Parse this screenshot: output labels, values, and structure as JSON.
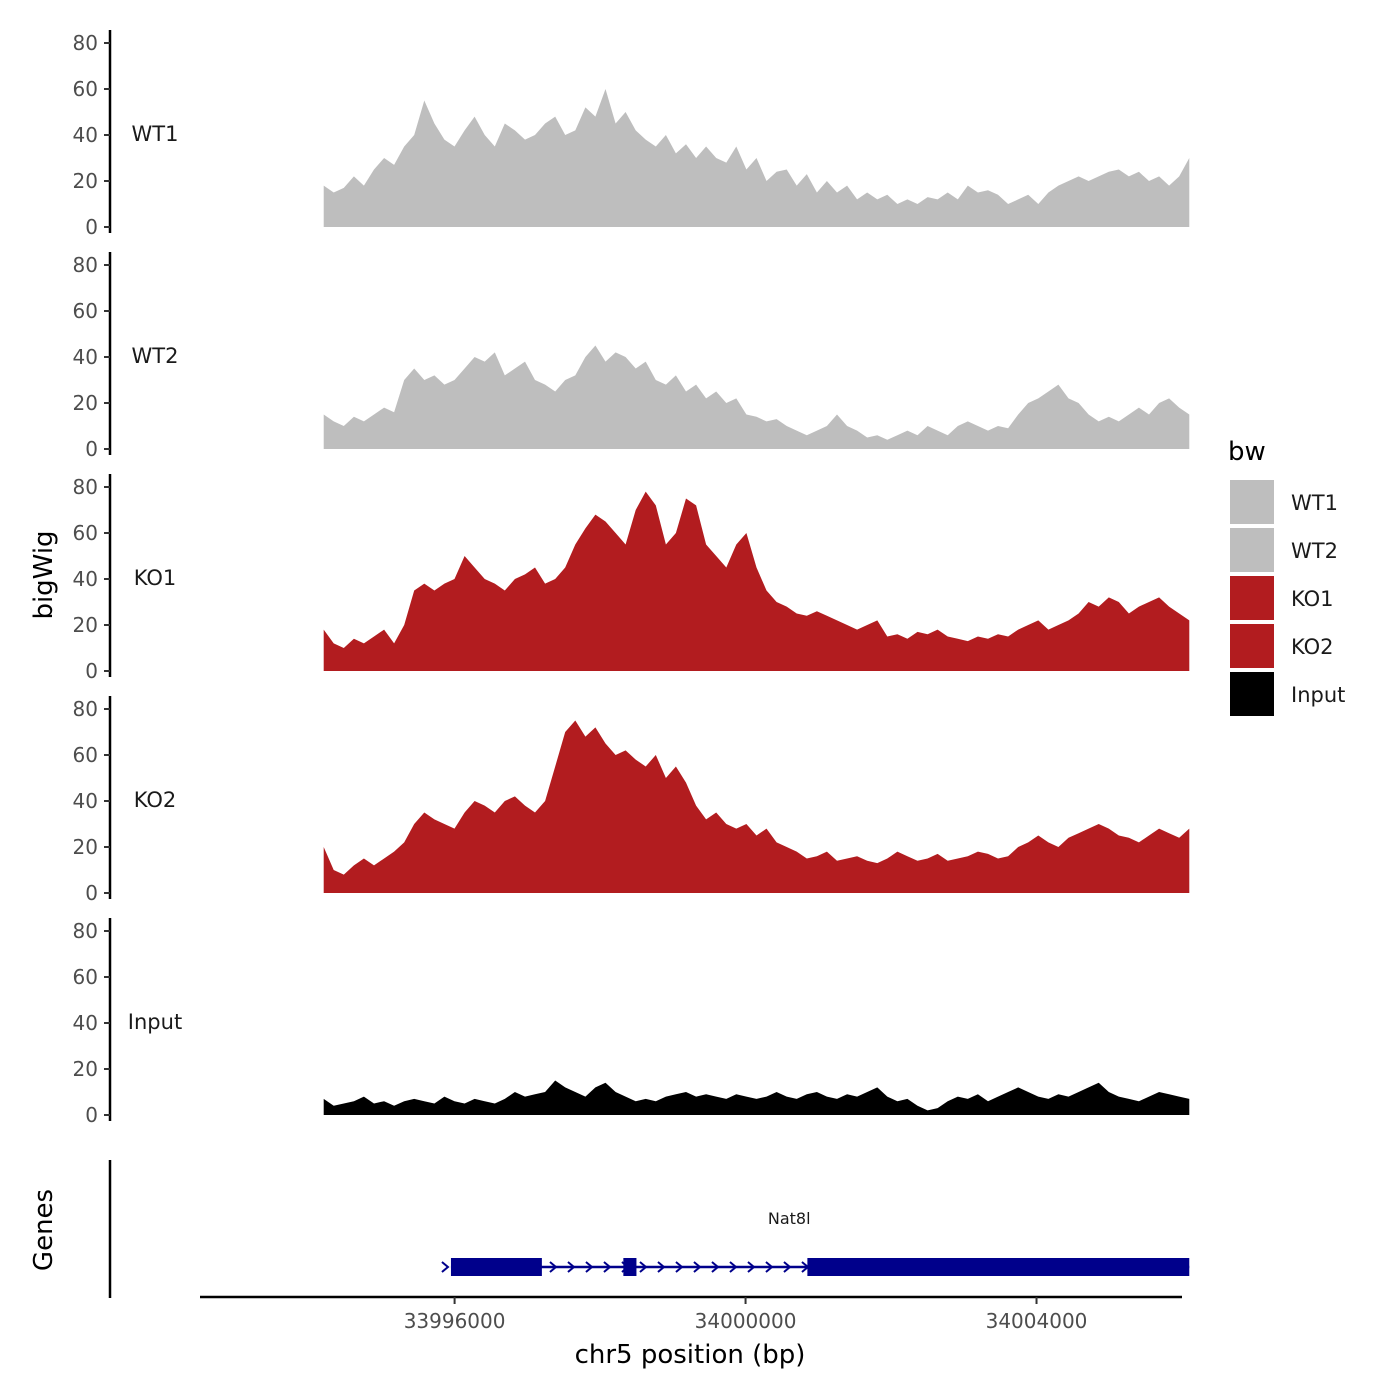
{
  "chart_data": {
    "type": "area",
    "ylabel": "bigWig",
    "xlabel": "chr5 position (bp)",
    "xlim": [
      33992500,
      34006000
    ],
    "ylim": [
      0,
      85
    ],
    "y_ticks": [
      0,
      20,
      40,
      60,
      80
    ],
    "y_tick_labels": [
      "0",
      "20",
      "40",
      "60",
      "80"
    ],
    "x_ticks": [
      33996000,
      34000000,
      34004000
    ],
    "x_tick_labels": [
      "33996000",
      "34000000",
      "34004000"
    ],
    "x_start": 33994200,
    "x_end": 34006100,
    "legend": {
      "title": "bw",
      "position": "right",
      "items": [
        {
          "label": "WT1",
          "color": "#bebebe"
        },
        {
          "label": "WT2",
          "color": "#bebebe"
        },
        {
          "label": "KO1",
          "color": "#b21c1f"
        },
        {
          "label": "KO2",
          "color": "#b21c1f"
        },
        {
          "label": "Input",
          "color": "#000000"
        }
      ]
    },
    "series": [
      {
        "name": "WT1",
        "color": "#bebebe",
        "values": [
          18,
          15,
          17,
          22,
          18,
          25,
          30,
          27,
          35,
          40,
          55,
          45,
          38,
          35,
          42,
          48,
          40,
          35,
          45,
          42,
          38,
          40,
          45,
          48,
          40,
          42,
          52,
          48,
          60,
          45,
          50,
          42,
          38,
          35,
          40,
          32,
          36,
          30,
          35,
          30,
          28,
          35,
          25,
          30,
          20,
          24,
          25,
          18,
          23,
          15,
          20,
          15,
          18,
          12,
          15,
          12,
          14,
          10,
          12,
          10,
          13,
          12,
          15,
          12,
          18,
          15,
          16,
          14,
          10,
          12,
          14,
          10,
          15,
          18,
          20,
          22,
          20,
          22,
          24,
          25,
          22,
          24,
          20,
          22,
          18,
          22,
          30
        ]
      },
      {
        "name": "WT2",
        "color": "#bebebe",
        "values": [
          15,
          12,
          10,
          14,
          12,
          15,
          18,
          16,
          30,
          35,
          30,
          32,
          28,
          30,
          35,
          40,
          38,
          42,
          32,
          35,
          38,
          30,
          28,
          25,
          30,
          32,
          40,
          45,
          38,
          42,
          40,
          35,
          38,
          30,
          28,
          32,
          25,
          28,
          22,
          25,
          20,
          22,
          15,
          14,
          12,
          13,
          10,
          8,
          6,
          8,
          10,
          15,
          10,
          8,
          5,
          6,
          4,
          6,
          8,
          6,
          10,
          8,
          6,
          10,
          12,
          10,
          8,
          10,
          9,
          15,
          20,
          22,
          25,
          28,
          22,
          20,
          15,
          12,
          14,
          12,
          15,
          18,
          15,
          20,
          22,
          18,
          15
        ]
      },
      {
        "name": "KO1",
        "color": "#b21c1f",
        "values": [
          18,
          12,
          10,
          14,
          12,
          15,
          18,
          12,
          20,
          35,
          38,
          35,
          38,
          40,
          50,
          45,
          40,
          38,
          35,
          40,
          42,
          45,
          38,
          40,
          45,
          55,
          62,
          68,
          65,
          60,
          55,
          70,
          78,
          72,
          55,
          60,
          75,
          72,
          55,
          50,
          45,
          55,
          60,
          45,
          35,
          30,
          28,
          25,
          24,
          26,
          24,
          22,
          20,
          18,
          20,
          22,
          15,
          16,
          14,
          17,
          16,
          18,
          15,
          14,
          13,
          15,
          14,
          16,
          15,
          18,
          20,
          22,
          18,
          20,
          22,
          25,
          30,
          28,
          32,
          30,
          25,
          28,
          30,
          32,
          28,
          25,
          22
        ]
      },
      {
        "name": "KO2",
        "color": "#b21c1f",
        "values": [
          20,
          10,
          8,
          12,
          15,
          12,
          15,
          18,
          22,
          30,
          35,
          32,
          30,
          28,
          35,
          40,
          38,
          35,
          40,
          42,
          38,
          35,
          40,
          55,
          70,
          75,
          68,
          72,
          65,
          60,
          62,
          58,
          55,
          60,
          50,
          55,
          48,
          38,
          32,
          35,
          30,
          28,
          30,
          25,
          28,
          22,
          20,
          18,
          15,
          16,
          18,
          14,
          15,
          16,
          14,
          13,
          15,
          18,
          16,
          14,
          15,
          17,
          14,
          15,
          16,
          18,
          17,
          15,
          16,
          20,
          22,
          25,
          22,
          20,
          24,
          26,
          28,
          30,
          28,
          25,
          24,
          22,
          25,
          28,
          26,
          24,
          28
        ]
      },
      {
        "name": "Input",
        "color": "#000000",
        "values": [
          7,
          4,
          5,
          6,
          8,
          5,
          6,
          4,
          6,
          7,
          6,
          5,
          8,
          6,
          5,
          7,
          6,
          5,
          7,
          10,
          8,
          9,
          10,
          15,
          12,
          10,
          8,
          12,
          14,
          10,
          8,
          6,
          7,
          6,
          8,
          9,
          10,
          8,
          9,
          8,
          7,
          9,
          8,
          7,
          8,
          10,
          8,
          7,
          9,
          10,
          8,
          7,
          9,
          8,
          10,
          12,
          8,
          6,
          7,
          4,
          2,
          3,
          6,
          8,
          7,
          9,
          6,
          8,
          10,
          12,
          10,
          8,
          7,
          9,
          8,
          10,
          12,
          14,
          10,
          8,
          7,
          6,
          8,
          10,
          9,
          8,
          7
        ]
      }
    ],
    "gene_track": {
      "label": "Genes",
      "gene": "Nat8l",
      "color": "#00008b",
      "gene_start": 33995950,
      "gene_end": 34006100,
      "strand": "+",
      "exons": [
        [
          33995950,
          33997200
        ],
        [
          33998320,
          33998500
        ],
        [
          34000850,
          34006100
        ]
      ]
    }
  }
}
